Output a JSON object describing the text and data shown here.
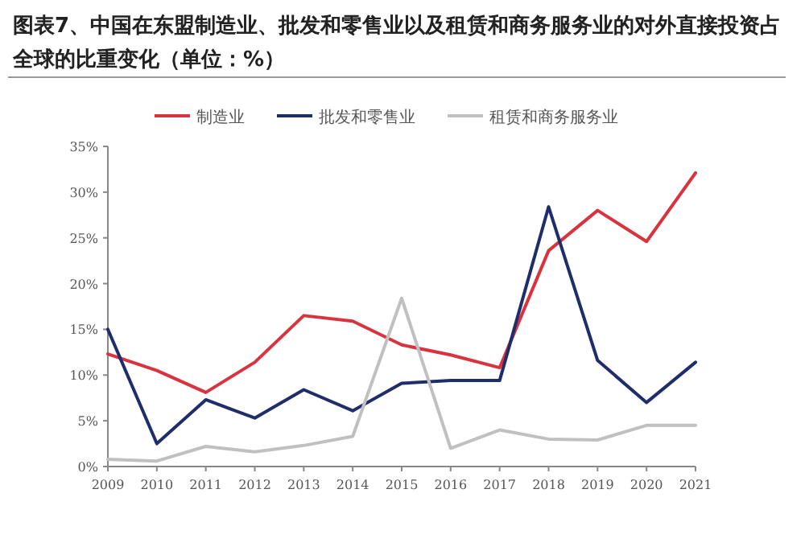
{
  "chart_data": {
    "type": "line",
    "title": "图表7、中国在东盟制造业、批发和零售业以及租赁和商务服务业的对外直接投资占全球的比重变化（单位：%）",
    "categories": [
      "2009",
      "2010",
      "2011",
      "2012",
      "2013",
      "2014",
      "2015",
      "2016",
      "2017",
      "2018",
      "2019",
      "2020",
      "2021"
    ],
    "series": [
      {
        "name": "制造业",
        "color": "#d9333f",
        "values": [
          12.3,
          10.5,
          8.1,
          11.4,
          16.5,
          15.9,
          13.3,
          12.2,
          10.8,
          23.6,
          28.0,
          24.6,
          32.1
        ]
      },
      {
        "name": "批发和零售业",
        "color": "#1f2d6b",
        "values": [
          15.0,
          2.5,
          7.3,
          5.3,
          8.4,
          6.1,
          9.1,
          9.4,
          9.4,
          28.4,
          11.6,
          7.0,
          11.4
        ]
      },
      {
        "name": "租赁和商务服务业",
        "color": "#c0c0c0",
        "values": [
          0.8,
          0.6,
          2.2,
          1.6,
          2.3,
          3.3,
          18.4,
          2.0,
          4.0,
          3.0,
          2.9,
          4.5,
          4.5
        ]
      }
    ],
    "ylim": [
      0,
      35
    ],
    "yticks": [
      {
        "value": 0,
        "label": "0%"
      },
      {
        "value": 5,
        "label": "5%"
      },
      {
        "value": 10,
        "label": "10%"
      },
      {
        "value": 15,
        "label": "15%"
      },
      {
        "value": 20,
        "label": "20%"
      },
      {
        "value": 25,
        "label": "25%"
      },
      {
        "value": 30,
        "label": "30%"
      },
      {
        "value": 35,
        "label": "35%"
      }
    ],
    "grid": false,
    "legend": "top"
  }
}
